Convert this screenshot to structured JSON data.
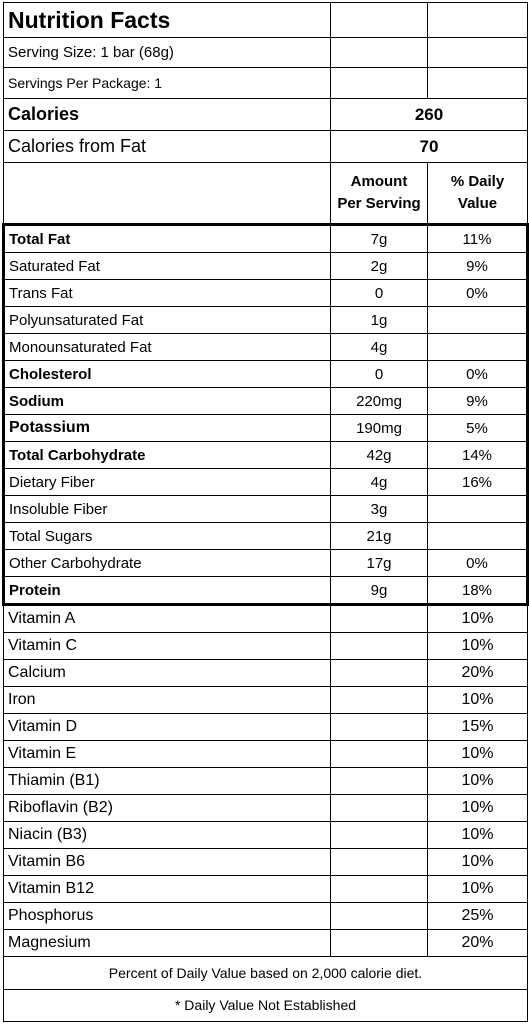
{
  "title": "Nutrition Facts",
  "serving_size": "Serving Size: 1 bar (68g)",
  "servings_per_package": "Servings Per Package: 1",
  "calories": {
    "label": "Calories",
    "value": "260"
  },
  "calories_from_fat": {
    "label": "Calories from Fat",
    "value": "70"
  },
  "headers": {
    "amount_line1": "Amount",
    "amount_line2": "Per Serving",
    "dv_line1": "% Daily",
    "dv_line2": "Value"
  },
  "nutrients": [
    {
      "name": "Total Fat",
      "amount": "7g",
      "dv": "11%"
    },
    {
      "name": "Saturated Fat",
      "amount": "2g",
      "dv": "9%"
    },
    {
      "name": "Trans Fat",
      "amount": "0",
      "dv": "0%"
    },
    {
      "name": "Polyunsaturated Fat",
      "amount": "1g",
      "dv": ""
    },
    {
      "name": "Monounsaturated Fat",
      "amount": "4g",
      "dv": ""
    },
    {
      "name": "Cholesterol",
      "amount": "0",
      "dv": "0%"
    },
    {
      "name": "Sodium",
      "amount": "220mg",
      "dv": "9%"
    },
    {
      "name": "Potassium",
      "amount": "190mg",
      "dv": "5%"
    },
    {
      "name": "Total Carbohydrate",
      "amount": "42g",
      "dv": "14%"
    },
    {
      "name": "Dietary Fiber",
      "amount": "4g",
      "dv": "16%"
    },
    {
      "name": "Insoluble Fiber",
      "amount": "3g",
      "dv": ""
    },
    {
      "name": "Total Sugars",
      "amount": "21g",
      "dv": ""
    },
    {
      "name": "Other Carbohydrate",
      "amount": "17g",
      "dv": "0%"
    },
    {
      "name": "Protein",
      "amount": "9g",
      "dv": "18%"
    }
  ],
  "vitamins": [
    {
      "name": "Vitamin A",
      "amount": "",
      "dv": "10%"
    },
    {
      "name": "Vitamin C",
      "amount": "",
      "dv": "10%"
    },
    {
      "name": "Calcium",
      "amount": "",
      "dv": "20%"
    },
    {
      "name": "Iron",
      "amount": "",
      "dv": "10%"
    },
    {
      "name": "Vitamin D",
      "amount": "",
      "dv": "15%"
    },
    {
      "name": "Vitamin E",
      "amount": "",
      "dv": "10%"
    },
    {
      "name": "Thiamin (B1)",
      "amount": "",
      "dv": "10%"
    },
    {
      "name": "Riboflavin (B2)",
      "amount": "",
      "dv": "10%"
    },
    {
      "name": "Niacin (B3)",
      "amount": "",
      "dv": "10%"
    },
    {
      "name": "Vitamin B6",
      "amount": "",
      "dv": "10%"
    },
    {
      "name": "Vitamin B12",
      "amount": "",
      "dv": "10%"
    },
    {
      "name": "Phosphorus",
      "amount": "",
      "dv": "25%"
    },
    {
      "name": "Magnesium",
      "amount": "",
      "dv": "20%"
    }
  ],
  "footnotes": [
    "Percent of Daily Value based on 2,000 calorie diet.",
    "* Daily Value Not Established"
  ]
}
